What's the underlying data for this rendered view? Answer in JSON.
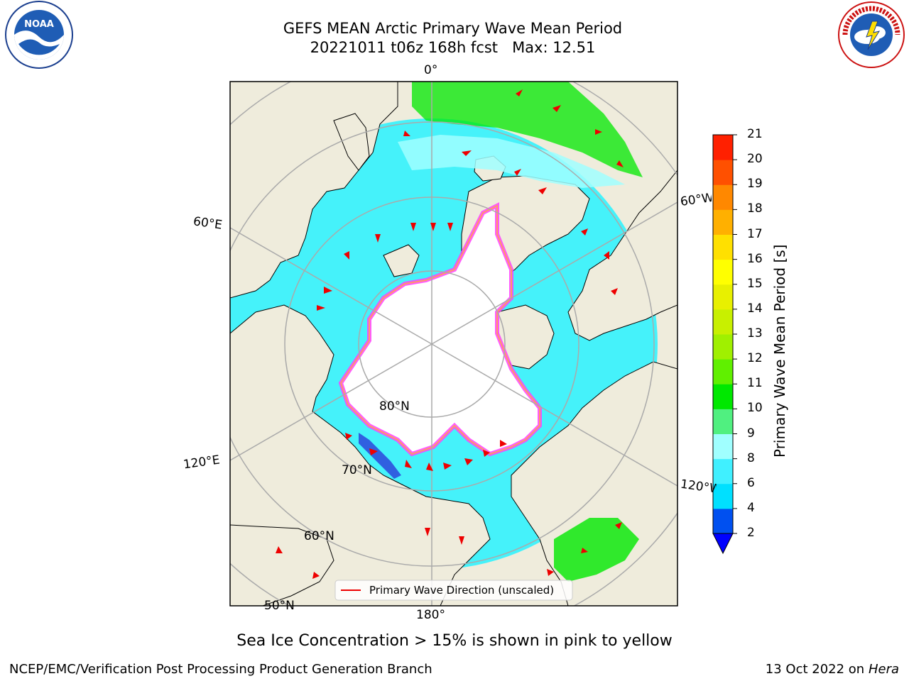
{
  "header": {
    "title_line1": "GEFS MEAN Arctic Primary Wave Mean Period",
    "title_line2": "20221011 t06z 168h fcst   Max: 12.51",
    "left_logo_text": "NOAA",
    "right_logo_text": "NATIONAL WEATHER SERVICE"
  },
  "map": {
    "labels": {
      "lon_top": "0°",
      "lon_bottom": "180°",
      "lon_60e": "60°E",
      "lon_120e": "120°E",
      "lon_60w": "60°W",
      "lon_120w": "120°W",
      "lat_80": "80°N",
      "lat_70": "70°N",
      "lat_60": "60°N",
      "lat_50": "50°N"
    },
    "legend_label": "Primary Wave Direction (unscaled)",
    "colors": {
      "land": "#efecdc",
      "ice": "#ff40ff",
      "ice_edge": "#ff9966",
      "grid": "#aaaaaa",
      "arrow": "#ee0000"
    }
  },
  "colorbar": {
    "label": "Primary Wave Mean Period [s]",
    "ticks": [
      "2",
      "4",
      "6",
      "8",
      "9",
      "10",
      "11",
      "12",
      "13",
      "14",
      "15",
      "16",
      "17",
      "18",
      "19",
      "20",
      "21"
    ],
    "colors": [
      "#0050f0",
      "#00e0ff",
      "#40f0ff",
      "#a0ffff",
      "#50f080",
      "#00e800",
      "#60f000",
      "#a0f000",
      "#c8f000",
      "#e8f000",
      "#ffff00",
      "#ffe000",
      "#ffb000",
      "#ff8800",
      "#ff5000",
      "#ff2000"
    ],
    "under_color": "#0000ff"
  },
  "notes": {
    "sea_ice": "Sea Ice Concentration > 15% is shown in pink to yellow"
  },
  "footer": {
    "left": "NCEP/EMC/Verification Post Processing Product Generation Branch",
    "right_prefix": "13 Oct 2022 on ",
    "right_italic": "Hera"
  }
}
